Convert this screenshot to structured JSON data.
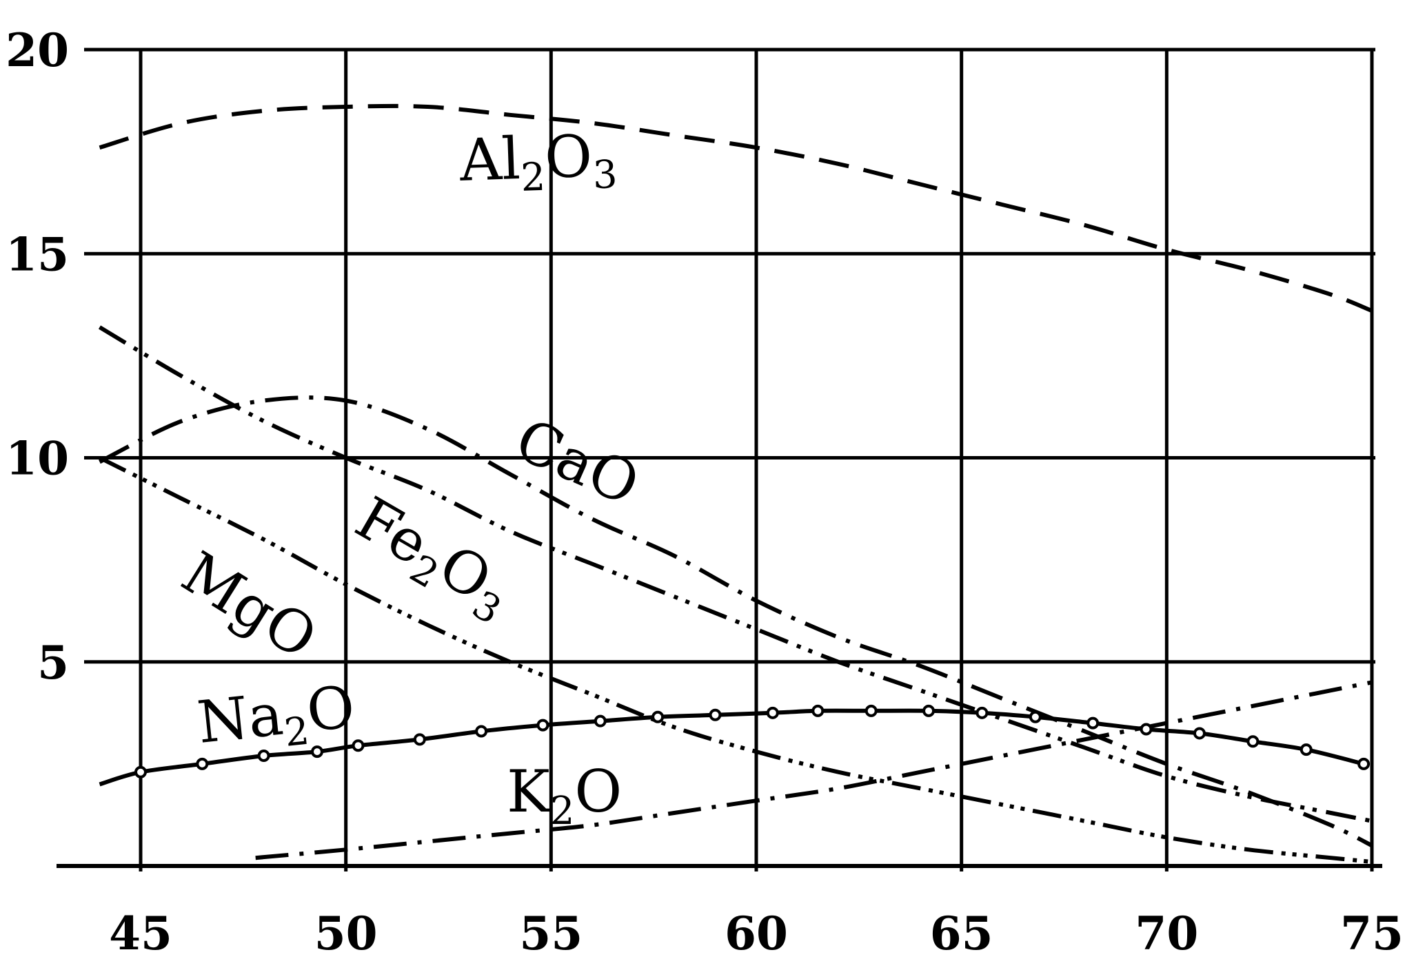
{
  "chart_data": {
    "type": "line",
    "title": "",
    "xlabel": "",
    "ylabel": "",
    "xlim": [
      44,
      75
    ],
    "ylim": [
      0,
      20
    ],
    "grid": true,
    "x_ticks": [
      "45",
      "50",
      "55",
      "60",
      "65",
      "70",
      "75"
    ],
    "y_ticks": [
      "5",
      "10",
      "15",
      "20"
    ],
    "series": [
      {
        "name": "Al2O3",
        "label_main": "Al",
        "label_sub": "2",
        "label_main2": "O",
        "label_sub2": "3",
        "style": "dashed",
        "markers": false,
        "x": [
          44,
          46,
          48,
          50,
          52,
          54,
          56,
          58,
          60,
          62,
          64,
          66,
          68,
          70,
          72,
          74,
          75
        ],
        "y": [
          17.6,
          18.2,
          18.5,
          18.6,
          18.6,
          18.4,
          18.2,
          17.9,
          17.6,
          17.2,
          16.7,
          16.2,
          15.7,
          15.1,
          14.6,
          14.0,
          13.6
        ]
      },
      {
        "name": "CaO",
        "label_main": "CaO",
        "style": "dash-dot",
        "markers": false,
        "x": [
          44,
          46,
          48,
          50,
          52,
          54,
          56,
          58,
          60,
          62,
          64,
          66,
          68,
          70,
          72,
          74,
          75
        ],
        "y": [
          9.9,
          10.9,
          11.4,
          11.4,
          10.7,
          9.6,
          8.5,
          7.6,
          6.5,
          5.6,
          4.9,
          4.1,
          3.3,
          2.5,
          1.8,
          1.0,
          0.5
        ]
      },
      {
        "name": "Fe2O3",
        "label_main": "Fe",
        "label_sub": "2",
        "label_main2": "O",
        "label_sub2": "3",
        "style": "dash-dot-dot",
        "markers": false,
        "x": [
          44,
          46,
          48,
          50,
          52,
          54,
          56,
          58,
          60,
          62,
          64,
          66,
          68,
          70,
          72,
          74,
          75
        ],
        "y": [
          13.2,
          12.0,
          10.9,
          10.0,
          9.2,
          8.2,
          7.4,
          6.6,
          5.8,
          5.0,
          4.3,
          3.6,
          2.9,
          2.2,
          1.7,
          1.3,
          1.1
        ]
      },
      {
        "name": "MgO",
        "label_main": "MgO",
        "style": "dash-dot-dot-dot",
        "markers": false,
        "x": [
          44,
          46,
          48,
          50,
          52,
          54,
          56,
          58,
          60,
          62,
          64,
          66,
          68,
          70,
          72,
          74,
          75
        ],
        "y": [
          10.0,
          9.0,
          8.0,
          6.9,
          5.9,
          5.0,
          4.2,
          3.4,
          2.8,
          2.3,
          1.9,
          1.5,
          1.1,
          0.7,
          0.4,
          0.2,
          0.1
        ]
      },
      {
        "name": "Na2O",
        "label_main": "Na",
        "label_sub": "2",
        "label_main2": "O",
        "style": "solid",
        "markers": true,
        "x": [
          44,
          45,
          46.5,
          48,
          49.3,
          50.3,
          51.8,
          53.3,
          54.8,
          56.2,
          57.6,
          59,
          60.4,
          61.5,
          62.8,
          64.2,
          65.5,
          66.8,
          68.2,
          69.5,
          70.8,
          72.1,
          73.4,
          74.8
        ],
        "y": [
          2.0,
          2.3,
          2.5,
          2.7,
          2.8,
          2.95,
          3.1,
          3.3,
          3.45,
          3.55,
          3.65,
          3.7,
          3.75,
          3.8,
          3.8,
          3.8,
          3.75,
          3.65,
          3.5,
          3.35,
          3.25,
          3.05,
          2.85,
          2.5
        ]
      },
      {
        "name": "K2O",
        "label_main": "K",
        "label_sub": "2",
        "label_main2": "O",
        "style": "dash-dot",
        "markers": false,
        "x": [
          47.8,
          50,
          52,
          54,
          56,
          58,
          60,
          62,
          64,
          66,
          68,
          70,
          72,
          74,
          75
        ],
        "y": [
          0.2,
          0.4,
          0.6,
          0.8,
          1.0,
          1.3,
          1.6,
          1.9,
          2.3,
          2.7,
          3.1,
          3.5,
          3.9,
          4.3,
          4.5
        ]
      }
    ]
  }
}
